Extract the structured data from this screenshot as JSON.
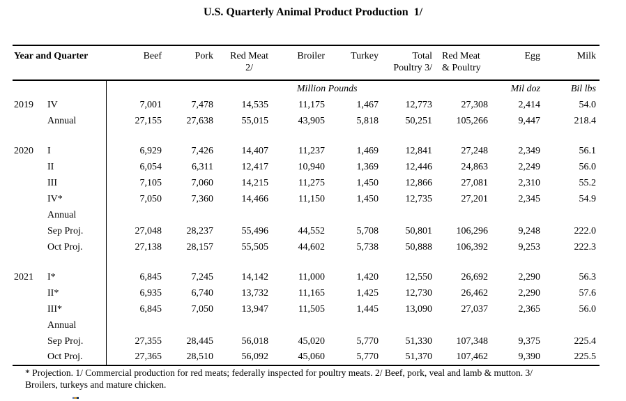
{
  "title": "U.S. Quarterly Animal Product Production  1/",
  "table": {
    "header": {
      "year_quarter": "Year and Quarter",
      "beef": "Beef",
      "pork": "Pork",
      "red_meat_line1": "Red Meat",
      "red_meat_line2": "2/",
      "broiler": "Broiler",
      "turkey": "Turkey",
      "total_poultry_line1": "Total",
      "total_poultry_line2": "Poultry 3/",
      "red_meat_poultry_line1": "Red Meat",
      "red_meat_poultry_line2": "& Poultry",
      "egg": "Egg",
      "milk": "Milk"
    },
    "units": {
      "million_pounds": "Million Pounds",
      "egg": "Mil doz",
      "milk": "Bil lbs"
    },
    "rows": [
      {
        "year": "2019",
        "quarter": "IV",
        "values": [
          "7,001",
          "7,478",
          "14,535",
          "11,175",
          "1,467",
          "12,773",
          "27,308",
          "2,414",
          "54.0"
        ]
      },
      {
        "year": "",
        "quarter": "Annual",
        "values": [
          "27,155",
          "27,638",
          "55,015",
          "43,905",
          "5,818",
          "50,251",
          "105,266",
          "9,447",
          "218.4"
        ]
      },
      {
        "spacer": true
      },
      {
        "year": "2020",
        "quarter": "I",
        "values": [
          "6,929",
          "7,426",
          "14,407",
          "11,237",
          "1,469",
          "12,841",
          "27,248",
          "2,349",
          "56.1"
        ]
      },
      {
        "year": "",
        "quarter": "II",
        "values": [
          "6,054",
          "6,311",
          "12,417",
          "10,940",
          "1,369",
          "12,446",
          "24,863",
          "2,249",
          "56.0"
        ]
      },
      {
        "year": "",
        "quarter": "III",
        "values": [
          "7,105",
          "7,060",
          "14,215",
          "11,275",
          "1,450",
          "12,866",
          "27,081",
          "2,310",
          "55.2"
        ]
      },
      {
        "year": "",
        "quarter": "IV*",
        "values": [
          "7,050",
          "7,360",
          "14,466",
          "11,150",
          "1,450",
          "12,735",
          "27,201",
          "2,345",
          "54.9"
        ]
      },
      {
        "year": "",
        "quarter": "Annual",
        "values": [
          "",
          "",
          "",
          "",
          "",
          "",
          "",
          "",
          ""
        ]
      },
      {
        "year": "",
        "quarter": "Sep Proj.",
        "values": [
          "27,048",
          "28,237",
          "55,496",
          "44,552",
          "5,708",
          "50,801",
          "106,296",
          "9,248",
          "222.0"
        ]
      },
      {
        "year": "",
        "quarter": "Oct Proj.",
        "values": [
          "27,138",
          "28,157",
          "55,505",
          "44,602",
          "5,738",
          "50,888",
          "106,392",
          "9,253",
          "222.3"
        ]
      },
      {
        "spacer": true
      },
      {
        "year": "2021",
        "quarter": "I*",
        "values": [
          "6,845",
          "7,245",
          "14,142",
          "11,000",
          "1,420",
          "12,550",
          "26,692",
          "2,290",
          "56.3"
        ]
      },
      {
        "year": "",
        "quarter": "II*",
        "values": [
          "6,935",
          "6,740",
          "13,732",
          "11,165",
          "1,425",
          "12,730",
          "26,462",
          "2,290",
          "57.6"
        ]
      },
      {
        "year": "",
        "quarter": "III*",
        "values": [
          "6,845",
          "7,050",
          "13,947",
          "11,505",
          "1,445",
          "13,090",
          "27,037",
          "2,365",
          "56.0"
        ]
      },
      {
        "year": "",
        "quarter": "Annual",
        "values": [
          "",
          "",
          "",
          "",
          "",
          "",
          "",
          "",
          ""
        ]
      },
      {
        "year": "",
        "quarter": "Sep Proj.",
        "values": [
          "27,355",
          "28,445",
          "56,018",
          "45,020",
          "5,770",
          "51,330",
          "107,348",
          "9,375",
          "225.4"
        ]
      },
      {
        "year": "",
        "quarter": "Oct Proj.",
        "values": [
          "27,365",
          "28,510",
          "56,092",
          "45,060",
          "5,770",
          "51,370",
          "107,462",
          "9,390",
          "225.5"
        ]
      }
    ]
  },
  "footnote_lines": [
    "* Projection. 1/ Commercial production for red meats; federally inspected for poultry meats. 2/ Beef, pork, veal and lamb & mutton. 3/",
    "Broilers, turkeys and mature chicken."
  ]
}
